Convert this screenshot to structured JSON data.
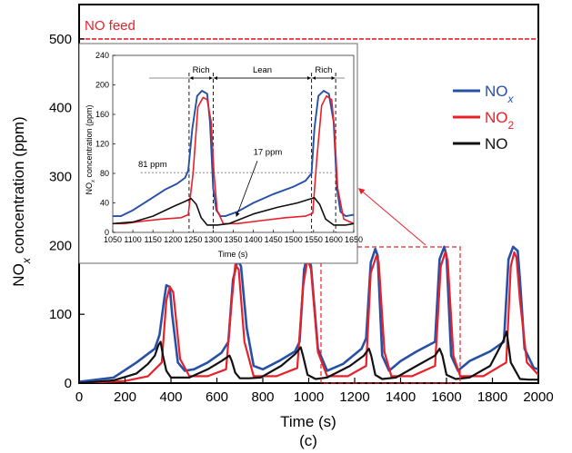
{
  "chart_data": [
    {
      "type": "line",
      "panel_label": "(c)",
      "xlabel": "Time (s)",
      "ylabel": "NO<sub>x</sub> concentration (ppm)",
      "xlim": [
        0,
        2000
      ],
      "ylim": [
        0,
        550
      ],
      "x_ticks": [
        "0",
        "200",
        "400",
        "600",
        "800",
        "1000",
        "1200",
        "1400",
        "1600",
        "1800",
        "2000"
      ],
      "y_ticks": [
        "0",
        "100",
        "200",
        "300",
        "400",
        "500"
      ],
      "reference_line": {
        "label": "NO feed",
        "value": 500,
        "color": "#e8202a"
      },
      "legend_position": "right",
      "series": [
        {
          "name": "NOx",
          "color": "#2750a6",
          "x": [
            0,
            150,
            250,
            330,
            350,
            370,
            380,
            395,
            405,
            430,
            460,
            500,
            560,
            620,
            650,
            670,
            690,
            705,
            730,
            760,
            800,
            870,
            940,
            960,
            980,
            995,
            1010,
            1040,
            1080,
            1150,
            1230,
            1250,
            1270,
            1290,
            1300,
            1320,
            1350,
            1400,
            1470,
            1550,
            1570,
            1590,
            1600,
            1620,
            1650,
            1700,
            1790,
            1850,
            1870,
            1890,
            1910,
            1920,
            1940,
            1980,
            2000
          ],
          "y": [
            2,
            8,
            30,
            50,
            70,
            120,
            142,
            140,
            100,
            30,
            18,
            20,
            30,
            44,
            60,
            150,
            178,
            170,
            80,
            25,
            20,
            32,
            46,
            60,
            165,
            187,
            170,
            50,
            18,
            28,
            50,
            65,
            175,
            195,
            185,
            40,
            18,
            32,
            46,
            60,
            180,
            198,
            185,
            40,
            18,
            32,
            46,
            60,
            180,
            198,
            192,
            150,
            50,
            22,
            20
          ]
        },
        {
          "name": "NO2",
          "color": "#e8202a",
          "x": [
            0,
            200,
            300,
            360,
            380,
            395,
            410,
            440,
            480,
            560,
            640,
            665,
            680,
            695,
            720,
            760,
            860,
            950,
            975,
            995,
            1010,
            1040,
            1080,
            1170,
            1250,
            1270,
            1295,
            1305,
            1330,
            1360,
            1450,
            1550,
            1575,
            1595,
            1605,
            1630,
            1660,
            1760,
            1860,
            1880,
            1895,
            1905,
            1920,
            1950,
            2000
          ],
          "y": [
            0,
            3,
            10,
            30,
            120,
            140,
            132,
            35,
            10,
            10,
            20,
            120,
            172,
            165,
            60,
            10,
            10,
            22,
            140,
            180,
            165,
            45,
            10,
            10,
            25,
            160,
            185,
            175,
            45,
            10,
            10,
            25,
            170,
            190,
            178,
            40,
            10,
            10,
            30,
            170,
            190,
            182,
            120,
            30,
            12
          ]
        },
        {
          "name": "NO",
          "color": "#111111",
          "x": [
            0,
            150,
            250,
            300,
            330,
            345,
            355,
            365,
            380,
            400,
            440,
            480,
            560,
            620,
            655,
            665,
            680,
            700,
            740,
            790,
            880,
            940,
            965,
            975,
            995,
            1030,
            1080,
            1180,
            1240,
            1262,
            1272,
            1290,
            1320,
            1380,
            1470,
            1550,
            1570,
            1582,
            1600,
            1640,
            1700,
            1790,
            1848,
            1862,
            1880,
            1920,
            1960,
            2000
          ],
          "y": [
            0,
            4,
            14,
            28,
            40,
            55,
            60,
            40,
            18,
            8,
            8,
            8,
            20,
            32,
            40,
            32,
            15,
            7,
            7,
            8,
            25,
            42,
            52,
            40,
            12,
            6,
            8,
            25,
            40,
            50,
            40,
            12,
            6,
            8,
            25,
            40,
            50,
            40,
            12,
            6,
            8,
            25,
            62,
            75,
            30,
            6,
            5,
            5
          ]
        }
      ]
    },
    {
      "type": "line",
      "xlabel": "Time (s)",
      "ylabel": "NO<sub>x</sub> concentration (ppm)",
      "xlim": [
        1050,
        1650
      ],
      "ylim": [
        0,
        240
      ],
      "x_ticks": [
        "1050",
        "1100",
        "1150",
        "1200",
        "1250",
        "1300",
        "1350",
        "1400",
        "1450",
        "1500",
        "1550",
        "1600",
        "1650"
      ],
      "y_ticks": [
        "0",
        "40",
        "80",
        "120",
        "160",
        "200",
        "240"
      ],
      "phases": [
        {
          "label": "Rich",
          "start": 1240,
          "end": 1300
        },
        {
          "label": "Lean",
          "start": 1300,
          "end": 1545
        },
        {
          "label": "Rich",
          "start": 1545,
          "end": 1605
        }
      ],
      "annotations": [
        {
          "text": "81 ppm",
          "x": 1130,
          "y": 81
        },
        {
          "text": "17 ppm",
          "x": 1390,
          "y": 17
        }
      ],
      "reference_value": 81,
      "series": [
        {
          "name": "NOx",
          "color": "#2750a6",
          "x": [
            1050,
            1070,
            1100,
            1140,
            1180,
            1210,
            1230,
            1238,
            1248,
            1260,
            1272,
            1285,
            1292,
            1300,
            1308,
            1318,
            1330,
            1360,
            1400,
            1450,
            1500,
            1530,
            1545,
            1552,
            1562,
            1575,
            1588,
            1600,
            1608,
            1617,
            1630,
            1650
          ],
          "y": [
            22,
            22,
            30,
            44,
            58,
            66,
            74,
            84,
            140,
            185,
            192,
            188,
            150,
            60,
            30,
            22,
            22,
            28,
            40,
            52,
            62,
            70,
            80,
            140,
            185,
            192,
            188,
            150,
            60,
            28,
            22,
            24
          ]
        },
        {
          "name": "NO2",
          "color": "#e8202a",
          "x": [
            1050,
            1080,
            1120,
            1170,
            1220,
            1238,
            1250,
            1262,
            1275,
            1285,
            1295,
            1302,
            1310,
            1325,
            1360,
            1420,
            1480,
            1530,
            1548,
            1558,
            1570,
            1582,
            1595,
            1602,
            1610,
            1625,
            1650
          ],
          "y": [
            12,
            12,
            15,
            18,
            20,
            24,
            80,
            170,
            183,
            180,
            150,
            80,
            30,
            12,
            12,
            16,
            20,
            22,
            26,
            100,
            172,
            185,
            180,
            140,
            60,
            18,
            12
          ]
        },
        {
          "name": "NO",
          "color": "#111111",
          "x": [
            1050,
            1100,
            1150,
            1200,
            1230,
            1245,
            1258,
            1270,
            1285,
            1310,
            1340,
            1400,
            1460,
            1510,
            1540,
            1552,
            1565,
            1580,
            1600,
            1630,
            1650
          ],
          "y": [
            12,
            14,
            22,
            35,
            42,
            46,
            38,
            20,
            10,
            10,
            12,
            25,
            34,
            40,
            45,
            47,
            38,
            18,
            10,
            10,
            12
          ]
        }
      ]
    }
  ]
}
